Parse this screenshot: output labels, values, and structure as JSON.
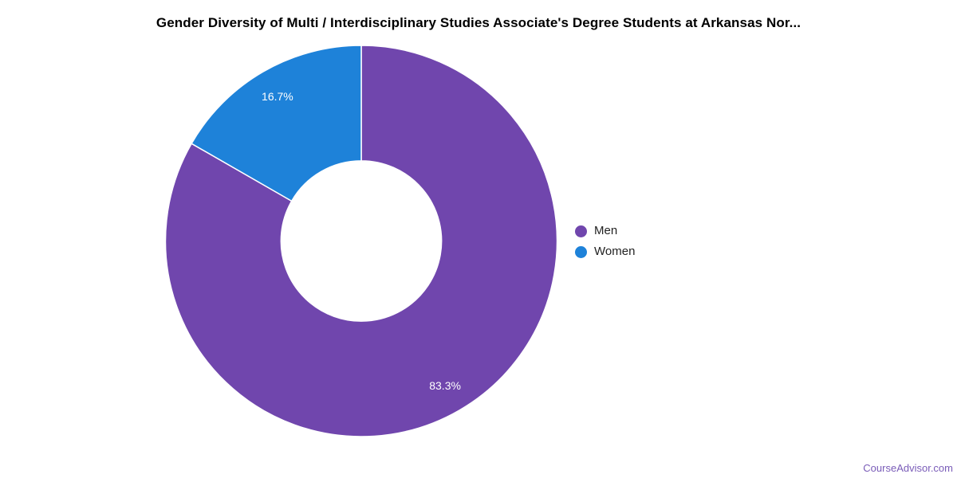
{
  "chart_data": {
    "type": "pie",
    "subtype": "donut",
    "title": "Gender Diversity of Multi / Interdisciplinary Studies Associate's Degree Students at Arkansas Nor...",
    "labels": [
      "Men",
      "Women"
    ],
    "values": [
      83.3,
      16.7
    ],
    "slice_labels": [
      "83.3%",
      "16.7%"
    ],
    "colors": [
      "#7046AD",
      "#1E82D9"
    ],
    "legend_position": "right",
    "start_angle_deg": 0,
    "direction": "clockwise",
    "inner_radius_ratio": 0.41,
    "slice_divider_color": "#ffffff",
    "slice_label_color": "#ffffff"
  },
  "legend": {
    "items": [
      {
        "label": "Men",
        "color": "#7046AD"
      },
      {
        "label": "Women",
        "color": "#1E82D9"
      }
    ]
  },
  "footer": {
    "text": "CourseAdvisor.com",
    "color": "#7A5CB8"
  }
}
